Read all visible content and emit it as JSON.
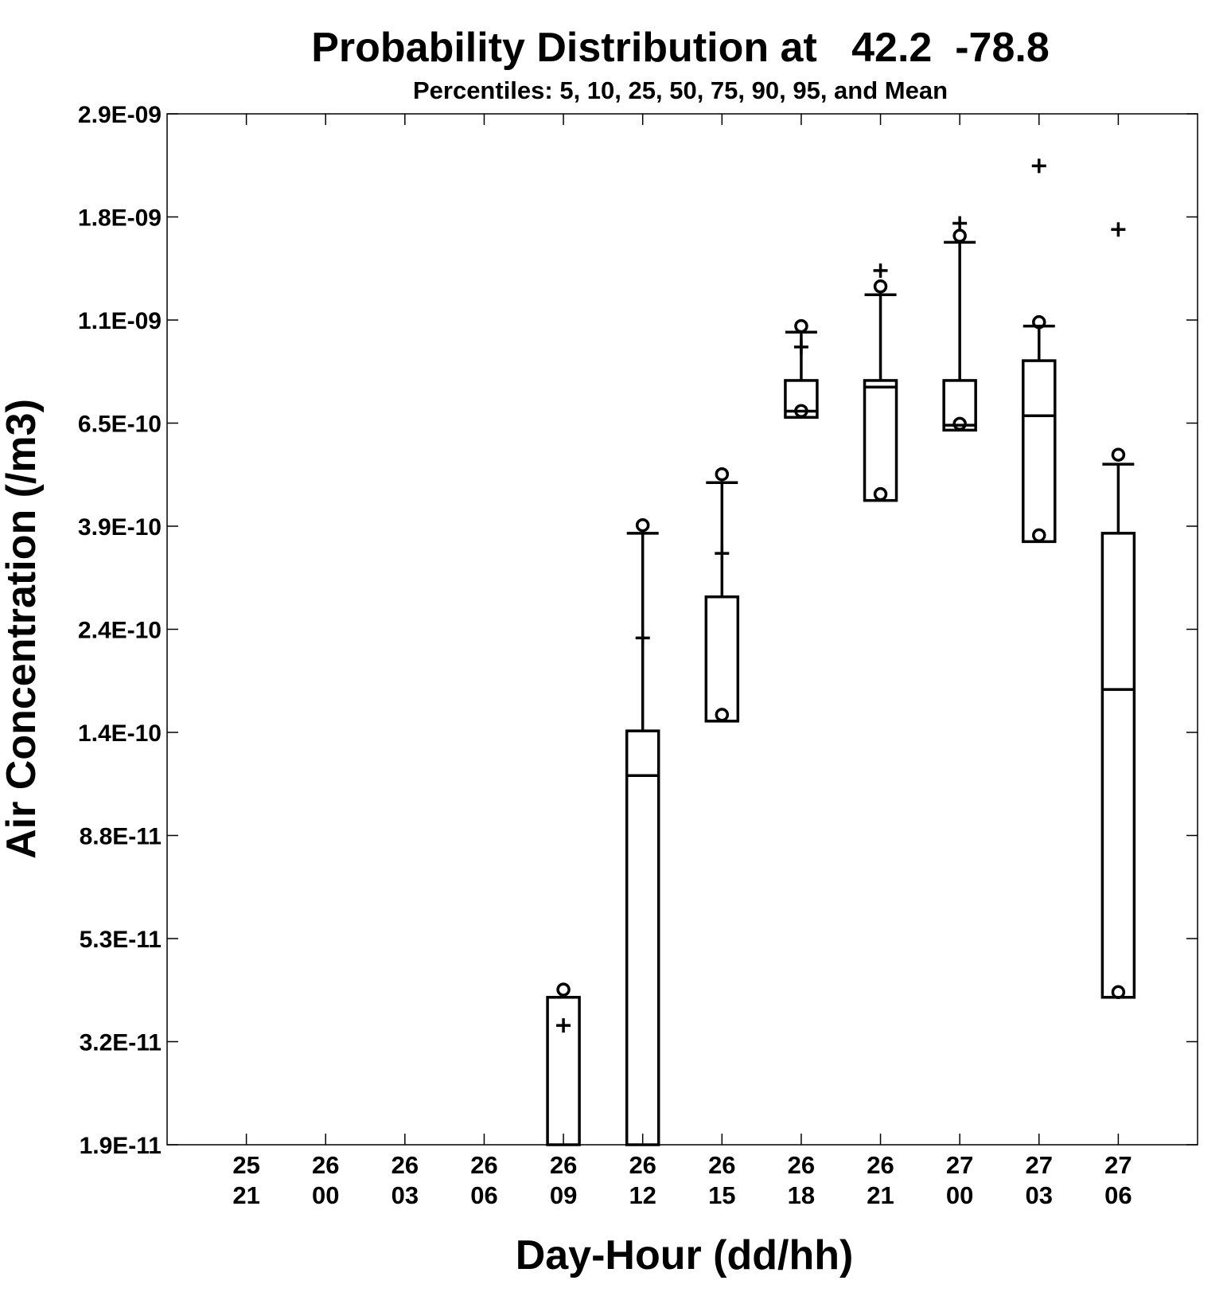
{
  "chart_data": {
    "type": "box",
    "title": "Probability Distribution at   42.2  -78.8",
    "subtitle": "Percentiles: 5, 10, 25, 50, 75, 90, 95, and Mean",
    "xlabel": "Day-Hour (dd/hh)",
    "ylabel": "Air Concentration (/m3)",
    "y_scale": "log",
    "ylim": [
      1.9e-11,
      2.9e-09
    ],
    "yticks": [
      "2.9E-09",
      "1.8E-09",
      "1.1E-09",
      "6.5E-10",
      "3.9E-10",
      "2.4E-10",
      "1.4E-10",
      "8.8E-11",
      "5.3E-11",
      "3.2E-11",
      "1.9E-11"
    ],
    "categories": [
      {
        "day": "25",
        "hour": "21"
      },
      {
        "day": "26",
        "hour": "00"
      },
      {
        "day": "26",
        "hour": "03"
      },
      {
        "day": "26",
        "hour": "06"
      },
      {
        "day": "26",
        "hour": "09"
      },
      {
        "day": "26",
        "hour": "12"
      },
      {
        "day": "26",
        "hour": "15"
      },
      {
        "day": "26",
        "hour": "18"
      },
      {
        "day": "26",
        "hour": "21"
      },
      {
        "day": "27",
        "hour": "00"
      },
      {
        "day": "27",
        "hour": "03"
      },
      {
        "day": "27",
        "hour": "06"
      }
    ],
    "boxes": [
      null,
      null,
      null,
      null,
      {
        "p25": null,
        "p50": null,
        "p75": 3.9e-11,
        "p90": null,
        "p95": 4.05e-11,
        "mean": 3.4e-11
      },
      {
        "p25": null,
        "p50": 1.15e-10,
        "p75": 1.43e-10,
        "p90": 3.75e-10,
        "p95": 3.9e-10,
        "mean": 2.25e-10
      },
      {
        "p25": 1.5e-10,
        "p50": null,
        "p75": 2.75e-10,
        "p90": 4.8e-10,
        "p95": 5e-10,
        "mean": 3.4e-10
      },
      {
        "p25": 6.6e-10,
        "p50": 6.8e-10,
        "p75": 7.9e-10,
        "p90": 1e-09,
        "p95": 1.03e-09,
        "mean": 9.3e-10
      },
      {
        "p25": 4.4e-10,
        "p50": 7.65e-10,
        "p75": 7.9e-10,
        "p90": 1.2e-09,
        "p95": 1.25e-09,
        "mean": 1.35e-09
      },
      {
        "p25": 6.2e-10,
        "p50": 6.35e-10,
        "p75": 7.9e-10,
        "p90": 1.55e-09,
        "p95": 1.6e-09,
        "mean": 1.7e-09
      },
      {
        "p25": 3.6e-10,
        "p50": 6.65e-10,
        "p75": 8.7e-10,
        "p90": 1.03e-09,
        "p95": 1.05e-09,
        "mean": 2.25e-09
      },
      {
        "p25": 3.9e-11,
        "p50": 1.75e-10,
        "p75": 3.75e-10,
        "p90": 5.25e-10,
        "p95": 5.5e-10,
        "p5": 4e-11,
        "mean": 1.65e-09
      }
    ],
    "grid": false,
    "legend": "none",
    "markers": {
      "p95": "circle",
      "mean": "plus"
    }
  }
}
